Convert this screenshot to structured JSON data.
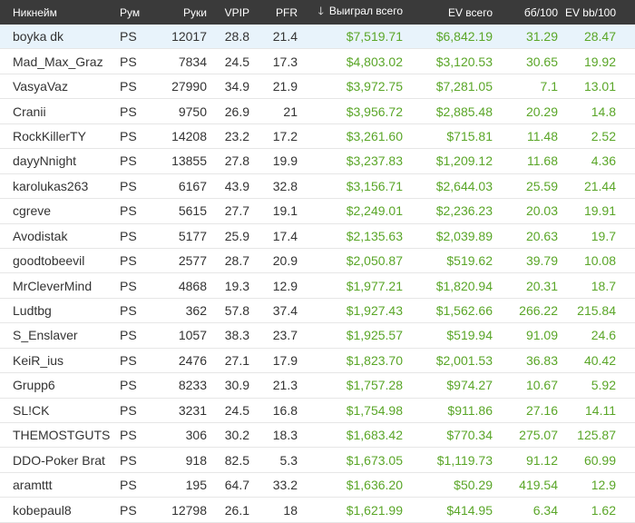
{
  "colors": {
    "header_bg": "#3a3a3a",
    "selected_row": "#e8f3fb",
    "money": "#5aa628"
  },
  "headers": {
    "name": "Никнейм",
    "room": "Рум",
    "hands": "Руки",
    "vpip": "VPIP",
    "pfr": "PFR",
    "won": "Выиграл всего",
    "ev": "EV всего",
    "bb100": "бб/100",
    "evbb100": "EV bb/100",
    "sort_icon": "arrow-down-icon"
  },
  "rows": [
    {
      "name": "boyka dk",
      "room": "PS",
      "hands": "12017",
      "vpip": "28.8",
      "pfr": "21.4",
      "won": "$7,519.71",
      "ev": "$6,842.19",
      "bb100": "31.29",
      "evbb100": "28.47"
    },
    {
      "name": "Mad_Max_Graz",
      "room": "PS",
      "hands": "7834",
      "vpip": "24.5",
      "pfr": "17.3",
      "won": "$4,803.02",
      "ev": "$3,120.53",
      "bb100": "30.65",
      "evbb100": "19.92"
    },
    {
      "name": "VasyaVaz",
      "room": "PS",
      "hands": "27990",
      "vpip": "34.9",
      "pfr": "21.9",
      "won": "$3,972.75",
      "ev": "$7,281.05",
      "bb100": "7.1",
      "evbb100": "13.01"
    },
    {
      "name": "Cranii",
      "room": "PS",
      "hands": "9750",
      "vpip": "26.9",
      "pfr": "21",
      "won": "$3,956.72",
      "ev": "$2,885.48",
      "bb100": "20.29",
      "evbb100": "14.8"
    },
    {
      "name": "RockKillerTY",
      "room": "PS",
      "hands": "14208",
      "vpip": "23.2",
      "pfr": "17.2",
      "won": "$3,261.60",
      "ev": "$715.81",
      "bb100": "11.48",
      "evbb100": "2.52"
    },
    {
      "name": "dayyNnight",
      "room": "PS",
      "hands": "13855",
      "vpip": "27.8",
      "pfr": "19.9",
      "won": "$3,237.83",
      "ev": "$1,209.12",
      "bb100": "11.68",
      "evbb100": "4.36"
    },
    {
      "name": "karolukas263",
      "room": "PS",
      "hands": "6167",
      "vpip": "43.9",
      "pfr": "32.8",
      "won": "$3,156.71",
      "ev": "$2,644.03",
      "bb100": "25.59",
      "evbb100": "21.44"
    },
    {
      "name": "cgreve",
      "room": "PS",
      "hands": "5615",
      "vpip": "27.7",
      "pfr": "19.1",
      "won": "$2,249.01",
      "ev": "$2,236.23",
      "bb100": "20.03",
      "evbb100": "19.91"
    },
    {
      "name": "Avodistak",
      "room": "PS",
      "hands": "5177",
      "vpip": "25.9",
      "pfr": "17.4",
      "won": "$2,135.63",
      "ev": "$2,039.89",
      "bb100": "20.63",
      "evbb100": "19.7"
    },
    {
      "name": "goodtobeevil",
      "room": "PS",
      "hands": "2577",
      "vpip": "28.7",
      "pfr": "20.9",
      "won": "$2,050.87",
      "ev": "$519.62",
      "bb100": "39.79",
      "evbb100": "10.08"
    },
    {
      "name": "MrCleverMind",
      "room": "PS",
      "hands": "4868",
      "vpip": "19.3",
      "pfr": "12.9",
      "won": "$1,977.21",
      "ev": "$1,820.94",
      "bb100": "20.31",
      "evbb100": "18.7"
    },
    {
      "name": "Ludtbg",
      "room": "PS",
      "hands": "362",
      "vpip": "57.8",
      "pfr": "37.4",
      "won": "$1,927.43",
      "ev": "$1,562.66",
      "bb100": "266.22",
      "evbb100": "215.84"
    },
    {
      "name": "S_Enslaver",
      "room": "PS",
      "hands": "1057",
      "vpip": "38.3",
      "pfr": "23.7",
      "won": "$1,925.57",
      "ev": "$519.94",
      "bb100": "91.09",
      "evbb100": "24.6"
    },
    {
      "name": "KeiR_ius",
      "room": "PS",
      "hands": "2476",
      "vpip": "27.1",
      "pfr": "17.9",
      "won": "$1,823.70",
      "ev": "$2,001.53",
      "bb100": "36.83",
      "evbb100": "40.42"
    },
    {
      "name": "Grupp6",
      "room": "PS",
      "hands": "8233",
      "vpip": "30.9",
      "pfr": "21.3",
      "won": "$1,757.28",
      "ev": "$974.27",
      "bb100": "10.67",
      "evbb100": "5.92"
    },
    {
      "name": "SL!CK",
      "room": "PS",
      "hands": "3231",
      "vpip": "24.5",
      "pfr": "16.8",
      "won": "$1,754.98",
      "ev": "$911.86",
      "bb100": "27.16",
      "evbb100": "14.11"
    },
    {
      "name": "THEMOSTGUTS",
      "room": "PS",
      "hands": "306",
      "vpip": "30.2",
      "pfr": "18.3",
      "won": "$1,683.42",
      "ev": "$770.34",
      "bb100": "275.07",
      "evbb100": "125.87"
    },
    {
      "name": "DDO-Poker Brat",
      "room": "PS",
      "hands": "918",
      "vpip": "82.5",
      "pfr": "5.3",
      "won": "$1,673.05",
      "ev": "$1,119.73",
      "bb100": "91.12",
      "evbb100": "60.99"
    },
    {
      "name": "aramttt",
      "room": "PS",
      "hands": "195",
      "vpip": "64.7",
      "pfr": "33.2",
      "won": "$1,636.20",
      "ev": "$50.29",
      "bb100": "419.54",
      "evbb100": "12.9"
    },
    {
      "name": "kobepaul8",
      "room": "PS",
      "hands": "12798",
      "vpip": "26.1",
      "pfr": "18",
      "won": "$1,621.99",
      "ev": "$414.95",
      "bb100": "6.34",
      "evbb100": "1.62"
    }
  ]
}
